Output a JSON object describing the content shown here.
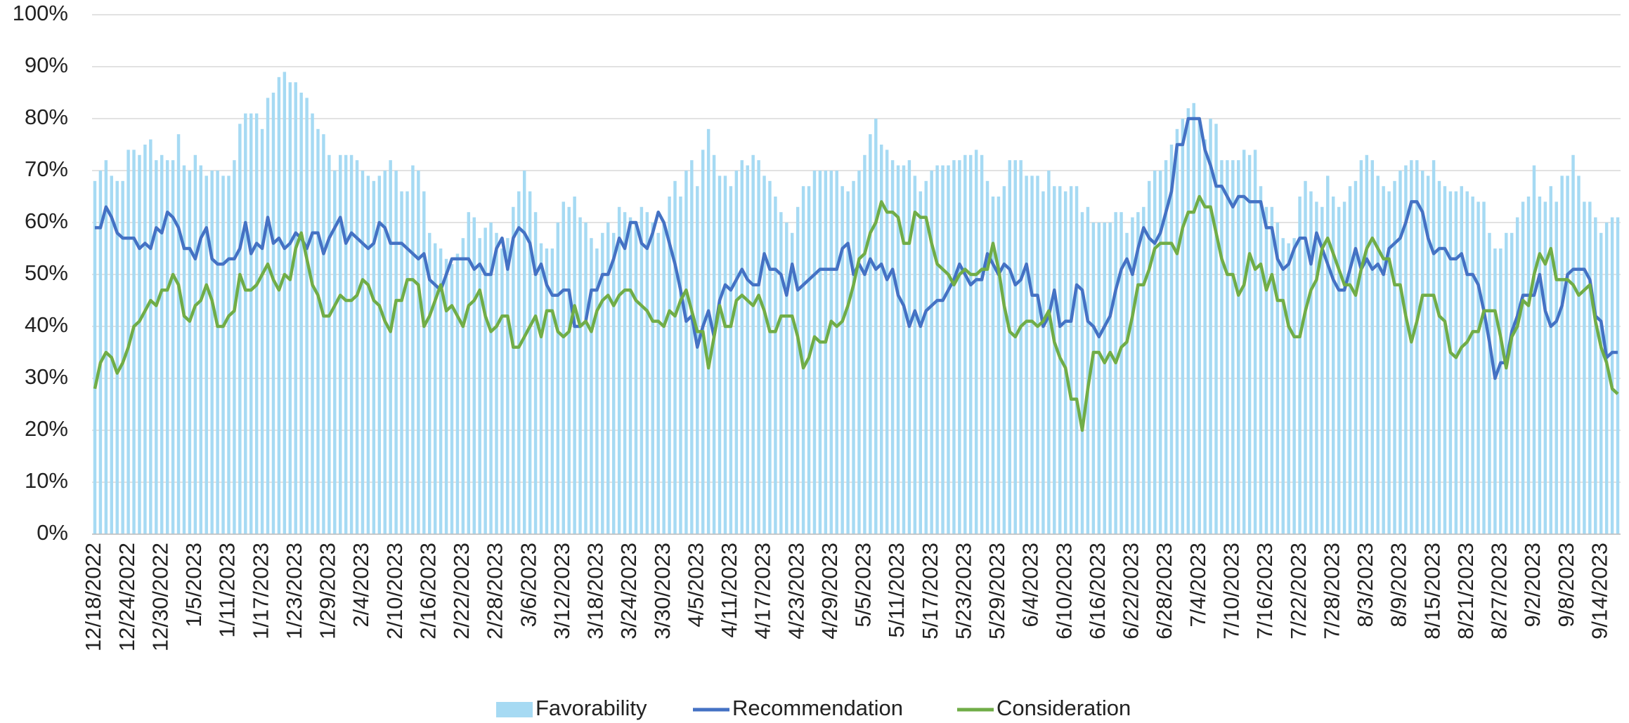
{
  "chart_data": {
    "type": "combo",
    "categories": [
      "12/18/2022",
      null,
      null,
      null,
      null,
      null,
      "12/24/2022",
      null,
      null,
      null,
      null,
      null,
      "12/30/2022",
      null,
      null,
      null,
      null,
      null,
      "1/5/2023",
      null,
      null,
      null,
      null,
      null,
      "1/11/2023",
      null,
      null,
      null,
      null,
      null,
      "1/17/2023",
      null,
      null,
      null,
      null,
      null,
      "1/23/2023",
      null,
      null,
      null,
      null,
      null,
      "1/29/2023",
      null,
      null,
      null,
      null,
      null,
      "2/4/2023",
      null,
      null,
      null,
      null,
      null,
      "2/10/2023",
      null,
      null,
      null,
      null,
      null,
      "2/16/2023",
      null,
      null,
      null,
      null,
      null,
      "2/22/2023",
      null,
      null,
      null,
      null,
      null,
      "2/28/2023",
      null,
      null,
      null,
      null,
      null,
      "3/6/2023",
      null,
      null,
      null,
      null,
      null,
      "3/12/2023",
      null,
      null,
      null,
      null,
      null,
      "3/18/2023",
      null,
      null,
      null,
      null,
      null,
      "3/24/2023",
      null,
      null,
      null,
      null,
      null,
      "3/30/2023",
      null,
      null,
      null,
      null,
      null,
      "4/5/2023",
      null,
      null,
      null,
      null,
      null,
      "4/11/2023",
      null,
      null,
      null,
      null,
      null,
      "4/17/2023",
      null,
      null,
      null,
      null,
      null,
      "4/23/2023",
      null,
      null,
      null,
      null,
      null,
      "4/29/2023",
      null,
      null,
      null,
      null,
      null,
      "5/5/2023",
      null,
      null,
      null,
      null,
      null,
      "5/11/2023",
      null,
      null,
      null,
      null,
      null,
      "5/17/2023",
      null,
      null,
      null,
      null,
      null,
      "5/23/2023",
      null,
      null,
      null,
      null,
      null,
      "5/29/2023",
      null,
      null,
      null,
      null,
      null,
      "6/4/2023",
      null,
      null,
      null,
      null,
      null,
      "6/10/2023",
      null,
      null,
      null,
      null,
      null,
      "6/16/2023",
      null,
      null,
      null,
      null,
      null,
      "6/22/2023",
      null,
      null,
      null,
      null,
      null,
      "6/28/2023",
      null,
      null,
      null,
      null,
      null,
      "7/4/2023",
      null,
      null,
      null,
      null,
      null,
      "7/10/2023",
      null,
      null,
      null,
      null,
      null,
      "7/16/2023",
      null,
      null,
      null,
      null,
      null,
      "7/22/2023",
      null,
      null,
      null,
      null,
      null,
      "7/28/2023",
      null,
      null,
      null,
      null,
      null,
      "8/3/2023",
      null,
      null,
      null,
      null,
      null,
      "8/9/2023",
      null,
      null,
      null,
      null,
      null,
      "8/15/2023",
      null,
      null,
      null,
      null,
      null,
      "8/21/2023",
      null,
      null,
      null,
      null,
      null,
      "8/27/2023",
      null,
      null,
      null,
      null,
      null,
      "9/2/2023",
      null,
      null,
      null,
      null,
      null,
      "9/8/2023",
      null,
      null,
      null,
      null,
      null,
      "9/14/2023",
      null,
      null,
      null
    ],
    "series": [
      {
        "name": "Favorability",
        "type": "bar",
        "color": "#a6daf3",
        "values": [
          68,
          70,
          72,
          69,
          68,
          68,
          74,
          74,
          73,
          75,
          76,
          72,
          73,
          72,
          72,
          77,
          71,
          70,
          73,
          71,
          69,
          70,
          70,
          69,
          69,
          72,
          79,
          81,
          81,
          81,
          78,
          84,
          85,
          88,
          89,
          87,
          87,
          85,
          84,
          81,
          78,
          77,
          73,
          70,
          73,
          73,
          73,
          72,
          70,
          69,
          68,
          69,
          70,
          72,
          70,
          66,
          66,
          71,
          70,
          66,
          58,
          56,
          55,
          53,
          52,
          54,
          57,
          62,
          61,
          57,
          59,
          60,
          58,
          55,
          57,
          63,
          66,
          70,
          66,
          62,
          56,
          55,
          55,
          60,
          64,
          63,
          65,
          61,
          60,
          57,
          55,
          58,
          60,
          58,
          63,
          62,
          61,
          60,
          63,
          62,
          60,
          58,
          60,
          65,
          68,
          65,
          70,
          72,
          67,
          74,
          78,
          73,
          69,
          69,
          67,
          70,
          72,
          71,
          73,
          72,
          69,
          68,
          65,
          62,
          60,
          58,
          63,
          67,
          67,
          70,
          70,
          70,
          70,
          70,
          67,
          66,
          68,
          70,
          73,
          77,
          80,
          75,
          74,
          72,
          71,
          71,
          72,
          69,
          66,
          68,
          70,
          71,
          71,
          71,
          72,
          72,
          73,
          73,
          74,
          73,
          68,
          65,
          65,
          67,
          72,
          72,
          72,
          69,
          69,
          69,
          66,
          70,
          67,
          67,
          66,
          67,
          67,
          62,
          63,
          60,
          60,
          60,
          60,
          62,
          62,
          58,
          61,
          62,
          63,
          68,
          70,
          70,
          72,
          75,
          78,
          80,
          82,
          83,
          80,
          76,
          80,
          79,
          72,
          72,
          72,
          72,
          74,
          73,
          74,
          67,
          63,
          63,
          60,
          57,
          56,
          57,
          65,
          68,
          66,
          64,
          63,
          69,
          65,
          63,
          64,
          67,
          68,
          72,
          73,
          72,
          69,
          67,
          66,
          68,
          70,
          71,
          72,
          72,
          70,
          69,
          72,
          68,
          67,
          66,
          66,
          67,
          66,
          65,
          64,
          64,
          58,
          55,
          55,
          58,
          58,
          61,
          64,
          65,
          71,
          65,
          64,
          67,
          64,
          69,
          69,
          73,
          69,
          64,
          64,
          61,
          58,
          60,
          61,
          61
        ]
      },
      {
        "name": "Recommendation",
        "type": "line",
        "color": "#4472c4",
        "values": [
          59,
          59,
          63,
          61,
          58,
          57,
          57,
          57,
          55,
          56,
          55,
          59,
          58,
          62,
          61,
          59,
          55,
          55,
          53,
          57,
          59,
          53,
          52,
          52,
          53,
          53,
          55,
          60,
          54,
          56,
          55,
          61,
          56,
          57,
          55,
          56,
          58,
          57,
          55,
          58,
          58,
          54,
          57,
          59,
          61,
          56,
          58,
          57,
          56,
          55,
          56,
          60,
          59,
          56,
          56,
          56,
          55,
          54,
          53,
          54,
          49,
          48,
          47,
          50,
          53,
          53,
          53,
          53,
          51,
          52,
          50,
          50,
          55,
          57,
          51,
          57,
          59,
          58,
          56,
          50,
          52,
          48,
          46,
          46,
          47,
          47,
          40,
          40,
          41,
          47,
          47,
          50,
          50,
          53,
          57,
          55,
          60,
          60,
          56,
          55,
          58,
          62,
          60,
          56,
          52,
          47,
          41,
          42,
          36,
          40,
          43,
          38,
          45,
          48,
          47,
          49,
          51,
          49,
          48,
          48,
          54,
          51,
          51,
          50,
          46,
          52,
          47,
          48,
          49,
          50,
          51,
          51,
          51,
          51,
          55,
          56,
          50,
          52,
          50,
          53,
          51,
          52,
          49,
          51,
          46,
          44,
          40,
          43,
          40,
          43,
          44,
          45,
          45,
          47,
          49,
          52,
          50,
          48,
          49,
          49,
          54,
          52,
          50,
          52,
          51,
          48,
          49,
          52,
          46,
          46,
          40,
          42,
          47,
          40,
          41,
          41,
          48,
          47,
          41,
          40,
          38,
          40,
          42,
          47,
          51,
          53,
          50,
          55,
          59,
          57,
          56,
          58,
          62,
          66,
          75,
          75,
          80,
          80,
          80,
          74,
          71,
          67,
          67,
          65,
          63,
          65,
          65,
          64,
          64,
          64,
          59,
          59,
          53,
          51,
          52,
          55,
          57,
          57,
          52,
          58,
          55,
          52,
          49,
          47,
          47,
          51,
          55,
          51,
          53,
          51,
          52,
          50,
          55,
          56,
          57,
          60,
          64,
          64,
          62,
          57,
          54,
          55,
          55,
          53,
          53,
          54,
          50,
          50,
          48,
          43,
          37,
          30,
          33,
          33,
          39,
          42,
          46,
          46,
          46,
          50,
          43,
          40,
          41,
          44,
          50,
          51,
          51,
          51,
          49,
          42,
          41,
          34,
          35,
          35
        ]
      },
      {
        "name": "Consideration",
        "type": "line",
        "color": "#70ad47",
        "values": [
          28,
          33,
          35,
          34,
          31,
          33,
          36,
          40,
          41,
          43,
          45,
          44,
          47,
          47,
          50,
          48,
          42,
          41,
          44,
          45,
          48,
          45,
          40,
          40,
          42,
          43,
          50,
          47,
          47,
          48,
          50,
          52,
          49,
          47,
          50,
          49,
          55,
          58,
          53,
          48,
          46,
          42,
          42,
          44,
          46,
          45,
          45,
          46,
          49,
          48,
          45,
          44,
          41,
          39,
          45,
          45,
          49,
          49,
          48,
          40,
          42,
          45,
          48,
          43,
          44,
          42,
          40,
          44,
          45,
          47,
          42,
          39,
          40,
          42,
          42,
          36,
          36,
          38,
          40,
          42,
          38,
          43,
          43,
          39,
          38,
          39,
          44,
          40,
          41,
          39,
          43,
          45,
          46,
          44,
          46,
          47,
          47,
          45,
          44,
          43,
          41,
          41,
          40,
          43,
          42,
          45,
          47,
          43,
          39,
          39,
          32,
          38,
          44,
          40,
          40,
          45,
          46,
          45,
          44,
          46,
          43,
          39,
          39,
          42,
          42,
          42,
          38,
          32,
          34,
          38,
          37,
          37,
          41,
          40,
          41,
          44,
          48,
          53,
          54,
          58,
          60,
          64,
          62,
          62,
          61,
          56,
          56,
          62,
          61,
          61,
          56,
          52,
          51,
          50,
          48,
          50,
          51,
          50,
          50,
          51,
          51,
          56,
          51,
          44,
          39,
          38,
          40,
          41,
          41,
          40,
          41,
          43,
          37,
          34,
          32,
          26,
          26,
          20,
          28,
          35,
          35,
          33,
          35,
          33,
          36,
          37,
          42,
          48,
          48,
          51,
          55,
          56,
          56,
          56,
          54,
          59,
          62,
          62,
          65,
          63,
          63,
          58,
          53,
          50,
          50,
          46,
          48,
          54,
          51,
          52,
          47,
          50,
          45,
          45,
          40,
          38,
          38,
          43,
          47,
          49,
          55,
          57,
          54,
          51,
          48,
          48,
          46,
          51,
          55,
          57,
          55,
          53,
          53,
          48,
          48,
          42,
          37,
          41,
          46,
          46,
          46,
          42,
          41,
          35,
          34,
          36,
          37,
          39,
          39,
          43,
          43,
          43,
          38,
          32,
          38,
          40,
          45,
          44,
          50,
          54,
          52,
          55,
          49,
          49,
          49,
          48,
          46,
          47,
          48,
          41,
          36,
          33,
          28,
          27
        ]
      }
    ],
    "ylim": [
      0,
      100
    ],
    "yticks": [
      {
        "value": 0,
        "label": "0%"
      },
      {
        "value": 10,
        "label": "10%"
      },
      {
        "value": 20,
        "label": "20%"
      },
      {
        "value": 30,
        "label": "30%"
      },
      {
        "value": 40,
        "label": "40%"
      },
      {
        "value": 50,
        "label": "50%"
      },
      {
        "value": 60,
        "label": "60%"
      },
      {
        "value": 70,
        "label": "70%"
      },
      {
        "value": 80,
        "label": "80%"
      },
      {
        "value": 90,
        "label": "90%"
      },
      {
        "value": 100,
        "label": "100%"
      }
    ],
    "grid": true,
    "legend": "bottom"
  }
}
